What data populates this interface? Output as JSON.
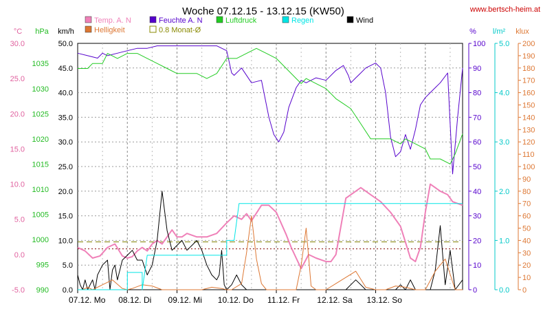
{
  "chart_data": {
    "type": "line",
    "title": "Woche 07.12.15 - 13.12.15 (KW50)",
    "source": "www.bertsch-heim.at",
    "x_days": [
      "07.12.  Mo",
      "08.12.  Di",
      "09.12.  Mi",
      "10.12.  Do",
      "11.12.  Fr",
      "12.12.  Sa",
      "13.12.  So"
    ],
    "xlim": [
      0,
      7.75
    ],
    "grid": true,
    "axes": [
      {
        "id": "temp",
        "unit": "°C",
        "side": "left",
        "color": "#e0609e",
        "min": -5,
        "max": 30,
        "step": 5,
        "decimals": 1,
        "ticks_shown": true
      },
      {
        "id": "press",
        "unit": "hPa",
        "side": "left",
        "color": "#22bb22",
        "min": 990,
        "max": 1039,
        "step": 5,
        "decimals": 0,
        "ticks_shown": true
      },
      {
        "id": "wind",
        "unit": "km/h",
        "side": "left",
        "color": "#000000",
        "min": 0,
        "max": 50,
        "step": 5,
        "decimals": 1,
        "ticks_shown": true
      },
      {
        "id": "hum",
        "unit": "%",
        "side": "right",
        "color": "#5500cc",
        "min": 0,
        "max": 100,
        "step": 10,
        "decimals": 0,
        "ticks_shown": true
      },
      {
        "id": "rain",
        "unit": "l/m²",
        "side": "right",
        "color": "#00c8c8",
        "min": 0,
        "max": 5,
        "step": 1,
        "decimals": 1,
        "ticks_shown": true
      },
      {
        "id": "lux",
        "unit": "klux",
        "side": "right",
        "color": "#dd7733",
        "min": 0,
        "max": 200,
        "step": 10,
        "decimals": 0,
        "ticks_shown": true
      }
    ],
    "legend": [
      {
        "label": "Temp. A. N",
        "color": "#ef80b8",
        "style": "fill"
      },
      {
        "label": "Feuchte A. N",
        "color": "#5500cc",
        "style": "fill"
      },
      {
        "label": "Luftdruck",
        "color": "#22cc22",
        "style": "fill"
      },
      {
        "label": "Regen",
        "color": "#00e5e5",
        "style": "fill"
      },
      {
        "label": "Wind",
        "color": "#000000",
        "style": "fill"
      },
      {
        "label": "Helligkeit",
        "color": "#dd7733",
        "style": "fill"
      },
      {
        "label": "0.8 Monat-Ø",
        "color": "#888800",
        "style": "box"
      }
    ],
    "reference_lines": [
      {
        "axis": "temp",
        "value": 0.8,
        "color": "#800000",
        "dash": "2,3"
      },
      {
        "axis": "temp",
        "value": 1.8,
        "color": "#808000",
        "dash": "8,5"
      }
    ],
    "series": [
      {
        "name": "Feuchte A. N",
        "axis": "hum",
        "color": "#5500cc",
        "width": 1,
        "x": [
          0,
          0.2,
          0.4,
          0.5,
          0.6,
          0.8,
          1.0,
          1.2,
          1.4,
          1.6,
          1.8,
          2.0,
          2.2,
          2.4,
          2.6,
          2.8,
          3.0,
          3.1,
          3.15,
          3.3,
          3.5,
          3.7,
          3.85,
          3.95,
          4.05,
          4.15,
          4.25,
          4.4,
          4.5,
          4.6,
          4.8,
          5.0,
          5.2,
          5.35,
          5.45,
          5.5,
          5.6,
          5.7,
          5.8,
          5.9,
          6.0,
          6.1,
          6.2,
          6.3,
          6.4,
          6.5,
          6.6,
          6.7,
          6.8,
          6.9,
          7.0,
          7.1,
          7.2,
          7.3,
          7.45,
          7.55,
          7.65,
          7.75
        ],
        "y": [
          96,
          95,
          94,
          96,
          95,
          96,
          97,
          98,
          98,
          99,
          99,
          99,
          99,
          99,
          99,
          99,
          97,
          88,
          87,
          90,
          84,
          85,
          70,
          63,
          60,
          64,
          74,
          82,
          85,
          84,
          86,
          85,
          89,
          91,
          87,
          84,
          86,
          88,
          90,
          91,
          92,
          90,
          80,
          62,
          54,
          56,
          63,
          57,
          65,
          75,
          78,
          80,
          82,
          84,
          88,
          47,
          70,
          90
        ]
      },
      {
        "name": "Luftdruck",
        "axis": "press",
        "color": "#22cc22",
        "width": 1,
        "x": [
          0,
          0.2,
          0.3,
          0.5,
          0.6,
          0.8,
          1.0,
          1.2,
          1.4,
          1.6,
          1.8,
          2.0,
          2.2,
          2.4,
          2.6,
          2.8,
          3.0,
          3.2,
          3.4,
          3.6,
          3.8,
          4.0,
          4.2,
          4.4,
          4.5,
          4.6,
          4.8,
          5.0,
          5.2,
          5.35,
          5.5,
          5.7,
          5.9,
          6.1,
          6.3,
          6.5,
          6.6,
          6.8,
          7.0,
          7.1,
          7.3,
          7.5,
          7.6,
          7.75
        ],
        "y": [
          1034,
          1034,
          1035,
          1035,
          1037,
          1036,
          1037,
          1037,
          1036,
          1035,
          1034,
          1033,
          1033,
          1033,
          1032,
          1033,
          1036,
          1036,
          1037,
          1038,
          1037,
          1036,
          1034,
          1032,
          1031,
          1032,
          1031,
          1030,
          1028,
          1027,
          1026,
          1023,
          1020,
          1020,
          1020,
          1019,
          1020,
          1019,
          1018,
          1016,
          1016,
          1015,
          1017,
          1021
        ]
      },
      {
        "name": "Temp. A. N",
        "axis": "temp",
        "color": "#ef80b8",
        "width": 2,
        "x": [
          0,
          0.15,
          0.3,
          0.45,
          0.6,
          0.75,
          0.9,
          1.0,
          1.1,
          1.2,
          1.3,
          1.4,
          1.5,
          1.6,
          1.7,
          1.8,
          1.9,
          2.0,
          2.1,
          2.2,
          2.4,
          2.6,
          2.8,
          3.0,
          3.15,
          3.3,
          3.4,
          3.5,
          3.7,
          3.85,
          4.0,
          4.2,
          4.3,
          4.4,
          4.5,
          4.65,
          4.8,
          5.0,
          5.1,
          5.2,
          5.4,
          5.6,
          5.7,
          5.8,
          5.9,
          6.1,
          6.3,
          6.5,
          6.7,
          6.8,
          6.9,
          7.0,
          7.1,
          7.3,
          7.45,
          7.55,
          7.75
        ],
        "y": [
          1.0,
          0.5,
          -0.5,
          -0.2,
          1.0,
          1.5,
          -0.2,
          -0.5,
          -0.3,
          0.5,
          1.0,
          0.5,
          1.5,
          2.0,
          1.5,
          2.5,
          3.5,
          2.5,
          2.5,
          3.0,
          2.5,
          2.5,
          3.0,
          4.5,
          5.5,
          5.0,
          5.8,
          4.8,
          7.0,
          7.0,
          6.0,
          2.8,
          1.0,
          -0.5,
          -2.0,
          0,
          -0.5,
          -1.0,
          -1.0,
          0,
          8.0,
          9.0,
          9.5,
          9.0,
          8.5,
          7.5,
          6.0,
          4.0,
          -0.5,
          -1.0,
          1.0,
          6.0,
          10.0,
          9.0,
          8.5,
          7.5,
          7.0
        ]
      },
      {
        "name": "Wind",
        "axis": "wind",
        "color": "#000000",
        "width": 1,
        "x": [
          0,
          0.05,
          0.1,
          0.15,
          0.2,
          0.3,
          0.35,
          0.4,
          0.5,
          0.6,
          0.65,
          0.7,
          0.75,
          0.8,
          0.9,
          1.0,
          1.1,
          1.2,
          1.3,
          1.4,
          1.5,
          1.6,
          1.7,
          1.8,
          1.9,
          2.0,
          2.1,
          2.2,
          2.3,
          2.4,
          2.5,
          2.6,
          2.7,
          2.8,
          2.85,
          2.9,
          2.95,
          3.0,
          3.1,
          3.2,
          3.3,
          3.4,
          3.5,
          3.6,
          3.7,
          3.8,
          4.0,
          4.2,
          4.4,
          4.5,
          4.6,
          4.7,
          4.8,
          5.0,
          5.1,
          5.2,
          5.3,
          5.4,
          5.5,
          5.6,
          5.7,
          5.8,
          6.0,
          6.2,
          6.4,
          6.5,
          6.6,
          6.7,
          6.8,
          6.9,
          7.0,
          7.1,
          7.2,
          7.3,
          7.4,
          7.5,
          7.6,
          7.75
        ],
        "y": [
          3,
          1,
          0,
          2,
          0,
          2,
          0,
          3,
          5,
          6,
          0,
          4,
          5,
          2,
          6,
          7,
          8,
          6,
          6,
          3,
          5,
          10,
          20,
          12,
          8,
          9,
          10,
          8,
          9,
          10,
          8,
          5,
          3,
          2,
          3,
          8,
          1,
          0,
          1,
          3,
          1,
          0,
          0,
          0,
          0,
          0,
          0,
          0,
          0,
          0,
          0,
          0,
          0,
          0,
          0,
          0,
          0,
          0,
          1,
          2,
          1,
          0,
          0,
          0,
          0,
          1,
          0,
          2,
          0,
          0,
          0,
          0,
          4,
          13,
          1,
          8,
          0,
          2
        ]
      },
      {
        "name": "Helligkeit",
        "axis": "lux",
        "color": "#dd7733",
        "width": 1,
        "x": [
          0,
          0.1,
          0.2,
          0.3,
          0.5,
          0.7,
          0.9,
          1.0,
          1.1,
          1.3,
          1.5,
          1.7,
          1.9,
          2.0,
          2.1,
          2.3,
          2.5,
          2.7,
          2.9,
          3.0,
          3.1,
          3.3,
          3.4,
          3.5,
          3.6,
          3.7,
          3.8,
          4.0,
          4.2,
          4.4,
          4.5,
          4.6,
          4.7,
          4.8,
          4.9,
          5.0,
          5.2,
          5.4,
          5.6,
          5.8,
          6.0,
          6.2,
          6.4,
          6.6,
          6.8,
          7.0,
          7.2,
          7.4,
          7.6,
          7.75
        ],
        "y": [
          0,
          0,
          2,
          0,
          4,
          8,
          1,
          0,
          1,
          4,
          3,
          0,
          0,
          0,
          0,
          0,
          0,
          2,
          1,
          0,
          0,
          5,
          30,
          60,
          25,
          5,
          0,
          0,
          0,
          0,
          20,
          50,
          3,
          0,
          0,
          0,
          5,
          10,
          15,
          2,
          0,
          0,
          3,
          2,
          0,
          0,
          15,
          25,
          0,
          0
        ]
      },
      {
        "name": "Regen",
        "axis": "rain",
        "color": "#00e5e5",
        "width": 1,
        "step": true,
        "x": [
          0,
          1.0,
          1.0,
          1.0,
          1.3,
          1.3,
          1.4,
          1.5,
          1.5,
          2.0,
          2.5,
          2.5,
          3.0,
          3.0,
          3.15,
          3.15,
          3.25,
          3.35,
          3.45,
          3.45,
          4.0,
          4.5,
          5.0,
          5.5,
          6.0,
          6.5,
          7.0,
          7.75
        ],
        "y": [
          0,
          0,
          0,
          0.35,
          0.35,
          0,
          0.7,
          0.7,
          0.7,
          0.7,
          0.7,
          0.7,
          0.7,
          1.0,
          1.0,
          1.0,
          1.75,
          1.75,
          1.75,
          1.75,
          1.75,
          1.75,
          1.75,
          1.75,
          1.75,
          1.75,
          1.75,
          1.75
        ]
      }
    ]
  }
}
